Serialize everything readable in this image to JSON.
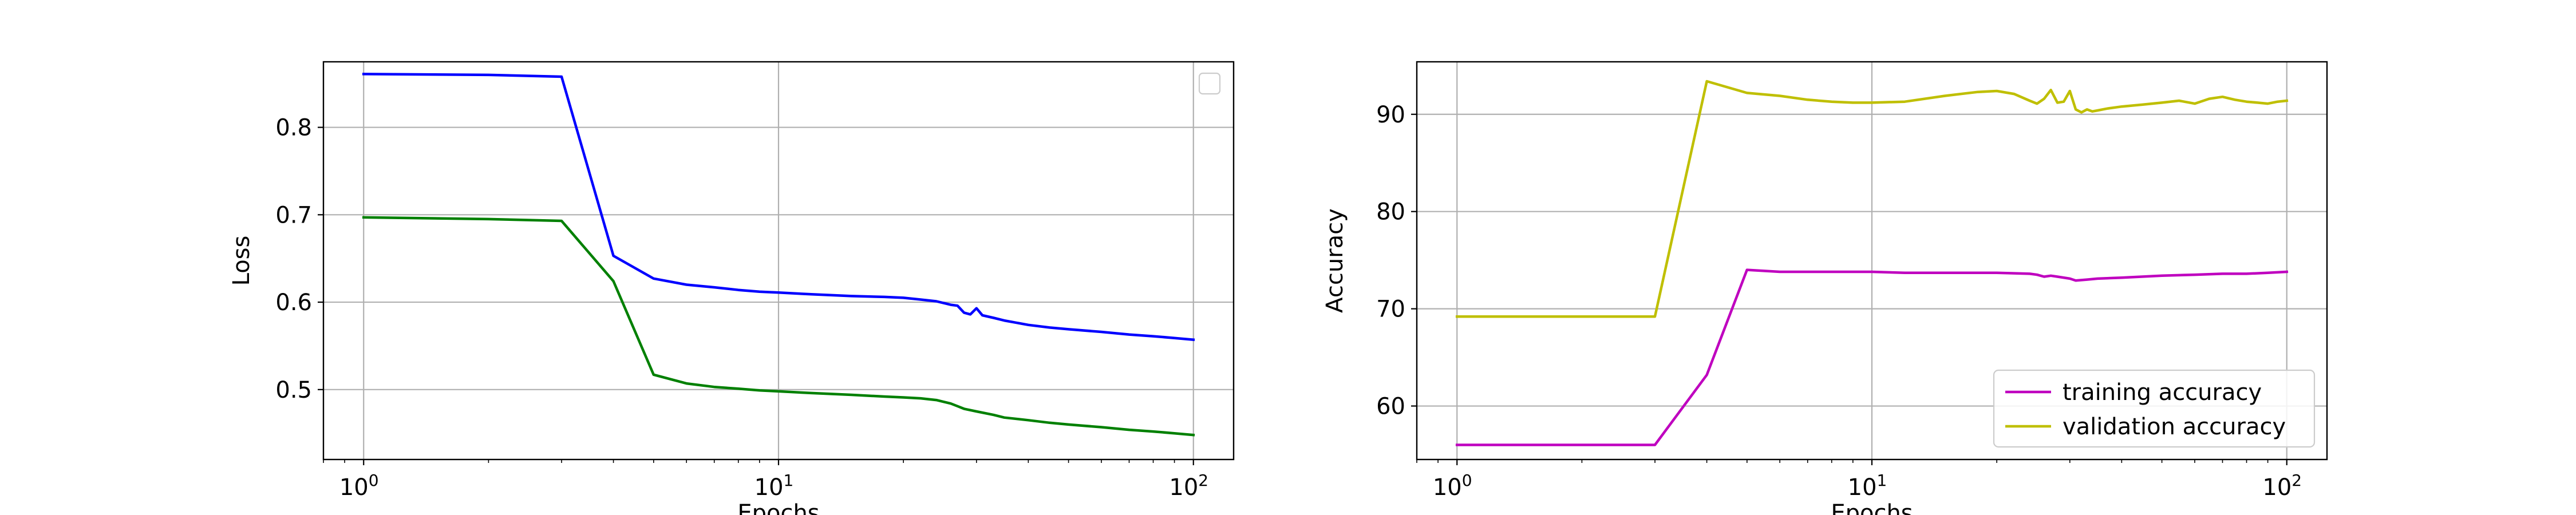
{
  "chart_data": [
    {
      "type": "line",
      "xscale": "log",
      "xlim": [
        0.8,
        125
      ],
      "ylim": [
        0.42,
        0.875
      ],
      "xticks": [
        1,
        10,
        100
      ],
      "xtick_labels": [
        {
          "base": "10",
          "exp": "0"
        },
        {
          "base": "10",
          "exp": "1"
        },
        {
          "base": "10",
          "exp": "2"
        }
      ],
      "yticks": [
        0.5,
        0.6,
        0.7,
        0.8
      ],
      "ytick_labels": [
        "0.5",
        "0.6",
        "0.7",
        "0.8"
      ],
      "xlabel": "Epochs",
      "ylabel": "Loss",
      "grid": true,
      "legend": {
        "placement": "upper right",
        "entries": []
      },
      "series": [
        {
          "color": "#0000ff",
          "x": [
            1,
            2,
            3,
            4,
            5,
            6,
            7,
            8,
            9,
            10,
            12,
            15,
            18,
            20,
            22,
            24,
            25,
            26,
            27,
            28,
            29,
            30,
            31,
            33,
            35,
            40,
            45,
            50,
            60,
            70,
            80,
            90,
            100
          ],
          "y": [
            0.861,
            0.86,
            0.858,
            0.653,
            0.627,
            0.62,
            0.617,
            0.614,
            0.612,
            0.611,
            0.609,
            0.607,
            0.606,
            0.605,
            0.603,
            0.601,
            0.599,
            0.597,
            0.596,
            0.588,
            0.586,
            0.593,
            0.585,
            0.582,
            0.579,
            0.574,
            0.571,
            0.569,
            0.566,
            0.563,
            0.561,
            0.559,
            0.557
          ]
        },
        {
          "color": "#008000",
          "x": [
            1,
            2,
            3,
            4,
            5,
            6,
            7,
            8,
            9,
            10,
            12,
            15,
            18,
            20,
            22,
            24,
            25,
            26,
            27,
            28,
            30,
            33,
            35,
            40,
            45,
            50,
            60,
            70,
            80,
            90,
            100
          ],
          "y": [
            0.697,
            0.695,
            0.693,
            0.624,
            0.517,
            0.507,
            0.503,
            0.501,
            0.499,
            0.498,
            0.496,
            0.494,
            0.492,
            0.491,
            0.49,
            0.488,
            0.486,
            0.484,
            0.481,
            0.478,
            0.475,
            0.471,
            0.468,
            0.465,
            0.462,
            0.46,
            0.457,
            0.454,
            0.452,
            0.45,
            0.448
          ]
        }
      ]
    },
    {
      "type": "line",
      "xscale": "log",
      "xlim": [
        0.8,
        125
      ],
      "ylim": [
        54.5,
        95.4
      ],
      "xticks": [
        1,
        10,
        100
      ],
      "xtick_labels": [
        {
          "base": "10",
          "exp": "0"
        },
        {
          "base": "10",
          "exp": "1"
        },
        {
          "base": "10",
          "exp": "2"
        }
      ],
      "yticks": [
        60,
        70,
        80,
        90
      ],
      "ytick_labels": [
        "60",
        "70",
        "80",
        "90"
      ],
      "xlabel": "Epochs",
      "ylabel": "Accuracy",
      "grid": true,
      "legend": {
        "placement": "lower right",
        "entries": [
          "training accuracy",
          "validation accuracy"
        ]
      },
      "series": [
        {
          "name": "training accuracy",
          "color": "#bf00bf",
          "x": [
            1,
            2,
            3,
            4,
            5,
            6,
            7,
            8,
            10,
            12,
            15,
            20,
            24,
            25,
            26,
            27,
            28,
            30,
            31,
            33,
            35,
            40,
            50,
            60,
            70,
            80,
            90,
            100
          ],
          "y": [
            56.0,
            56.0,
            56.0,
            63.2,
            74.0,
            73.8,
            73.8,
            73.8,
            73.8,
            73.7,
            73.7,
            73.7,
            73.6,
            73.5,
            73.3,
            73.4,
            73.3,
            73.1,
            72.9,
            73.0,
            73.1,
            73.2,
            73.4,
            73.5,
            73.6,
            73.6,
            73.7,
            73.8
          ]
        },
        {
          "name": "validation accuracy",
          "color": "#bfbf00",
          "x": [
            1,
            2,
            3,
            4,
            5,
            6,
            7,
            8,
            9,
            10,
            12,
            15,
            18,
            20,
            22,
            24,
            25,
            26,
            27,
            28,
            29,
            30,
            31,
            32,
            33,
            34,
            35,
            37,
            40,
            45,
            50,
            55,
            60,
            65,
            70,
            75,
            80,
            85,
            90,
            95,
            100
          ],
          "y": [
            69.2,
            69.2,
            69.2,
            93.4,
            92.2,
            91.9,
            91.5,
            91.3,
            91.2,
            91.2,
            91.3,
            91.9,
            92.3,
            92.4,
            92.1,
            91.4,
            91.1,
            91.6,
            92.5,
            91.2,
            91.3,
            92.4,
            90.5,
            90.2,
            90.5,
            90.3,
            90.4,
            90.6,
            90.8,
            91.0,
            91.2,
            91.4,
            91.1,
            91.6,
            91.8,
            91.5,
            91.3,
            91.2,
            91.1,
            91.3,
            91.4
          ]
        }
      ]
    }
  ]
}
